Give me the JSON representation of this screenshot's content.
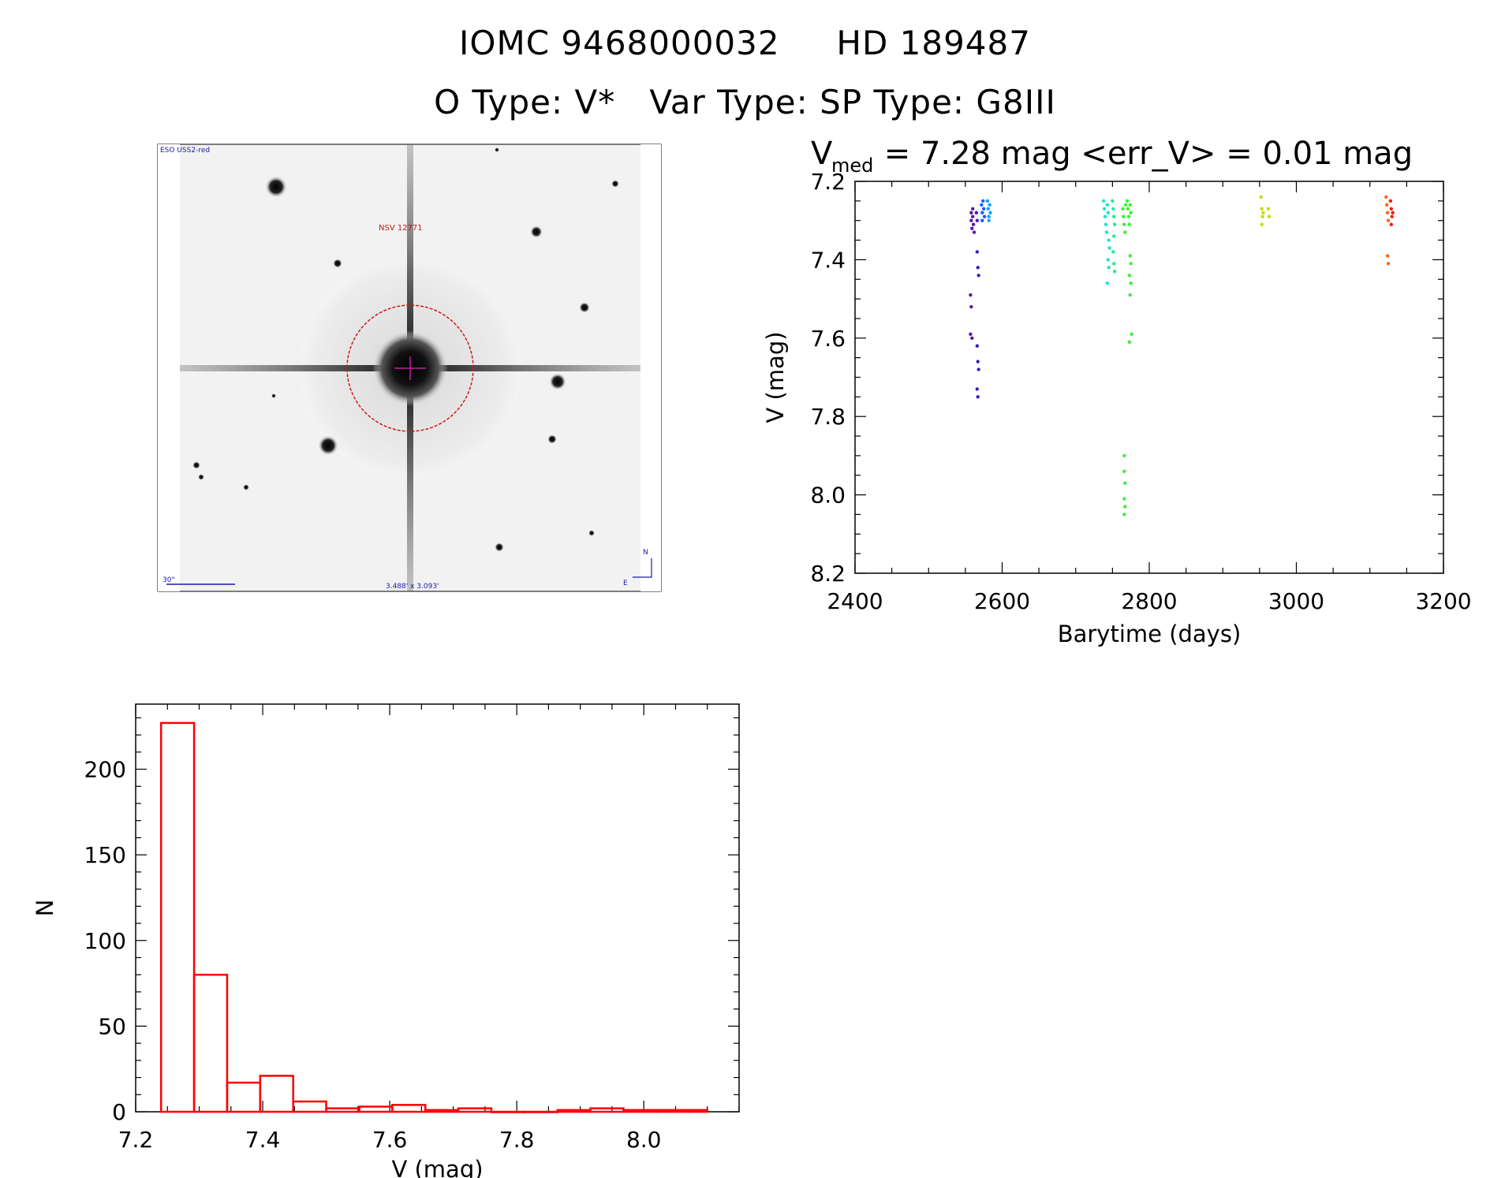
{
  "title": {
    "line1_id": "IOMC 9468000032",
    "line1_name": "HD 189487",
    "line2_otype": "O Type: V*",
    "line2_vartype": "Var Type:",
    "line2_sptype": "SP Type: G8III"
  },
  "finder": {
    "survey_label": "ESO USS2-red",
    "target_label": "NSV 12771",
    "scale_label": "30\"",
    "size_label": "3.488' x 3.093'",
    "north_label": "N",
    "east_label": "E"
  },
  "lightcurve_header": {
    "vmed_base": "V",
    "vmed_sub": "med",
    "vmed_text": " = 7.28 mag <err_V> = 0.01 mag"
  },
  "chart_data": [
    {
      "type": "scatter",
      "title": "",
      "xlabel": "Barytime (days)",
      "ylabel": "V (mag)",
      "xlim": [
        2400,
        3200
      ],
      "ylim": [
        8.2,
        7.2
      ],
      "y_inverted": true,
      "xticks": [
        2400,
        2600,
        2800,
        3000,
        3200
      ],
      "yticks": [
        "7.2",
        "7.4",
        "7.6",
        "7.8",
        "8.0",
        "8.2"
      ],
      "grid": false,
      "points": [
        {
          "x": 2558,
          "y": 7.28,
          "color": "#5a1a9e"
        },
        {
          "x": 2558,
          "y": 7.3,
          "color": "#5a1a9e"
        },
        {
          "x": 2559,
          "y": 7.32,
          "color": "#5a1a9e"
        },
        {
          "x": 2560,
          "y": 7.27,
          "color": "#5a1a9e"
        },
        {
          "x": 2560,
          "y": 7.29,
          "color": "#5a1a9e"
        },
        {
          "x": 2561,
          "y": 7.31,
          "color": "#5a1a9e"
        },
        {
          "x": 2562,
          "y": 7.33,
          "color": "#5a1a9e"
        },
        {
          "x": 2557,
          "y": 7.49,
          "color": "#5a1a9e"
        },
        {
          "x": 2558,
          "y": 7.52,
          "color": "#5a1a9e"
        },
        {
          "x": 2557,
          "y": 7.59,
          "color": "#5a1a9e"
        },
        {
          "x": 2559,
          "y": 7.6,
          "color": "#5a1a9e"
        },
        {
          "x": 2565,
          "y": 7.28,
          "color": "#3a1ac8"
        },
        {
          "x": 2566,
          "y": 7.3,
          "color": "#3a1ac8"
        },
        {
          "x": 2566,
          "y": 7.38,
          "color": "#3a1ac8"
        },
        {
          "x": 2567,
          "y": 7.42,
          "color": "#3a1ac8"
        },
        {
          "x": 2568,
          "y": 7.44,
          "color": "#3a1ac8"
        },
        {
          "x": 2566,
          "y": 7.62,
          "color": "#3a1ac8"
        },
        {
          "x": 2567,
          "y": 7.66,
          "color": "#3a1ac8"
        },
        {
          "x": 2568,
          "y": 7.68,
          "color": "#3a1ac8"
        },
        {
          "x": 2566,
          "y": 7.73,
          "color": "#3a1ac8"
        },
        {
          "x": 2567,
          "y": 7.75,
          "color": "#3a1ac8"
        },
        {
          "x": 2572,
          "y": 7.26,
          "color": "#1e5aff"
        },
        {
          "x": 2573,
          "y": 7.28,
          "color": "#1e5aff"
        },
        {
          "x": 2574,
          "y": 7.25,
          "color": "#1e5aff"
        },
        {
          "x": 2575,
          "y": 7.27,
          "color": "#1e5aff"
        },
        {
          "x": 2576,
          "y": 7.29,
          "color": "#1e5aff"
        },
        {
          "x": 2573,
          "y": 7.3,
          "color": "#1e5aff"
        },
        {
          "x": 2580,
          "y": 7.25,
          "color": "#19a0ff"
        },
        {
          "x": 2581,
          "y": 7.27,
          "color": "#19a0ff"
        },
        {
          "x": 2582,
          "y": 7.29,
          "color": "#19a0ff"
        },
        {
          "x": 2583,
          "y": 7.26,
          "color": "#19a0ff"
        },
        {
          "x": 2584,
          "y": 7.28,
          "color": "#19a0ff"
        },
        {
          "x": 2582,
          "y": 7.3,
          "color": "#19a0ff"
        },
        {
          "x": 2738,
          "y": 7.25,
          "color": "#1ee6c8"
        },
        {
          "x": 2739,
          "y": 7.27,
          "color": "#1ee6c8"
        },
        {
          "x": 2740,
          "y": 7.29,
          "color": "#1ee6c8"
        },
        {
          "x": 2741,
          "y": 7.31,
          "color": "#1ee6c8"
        },
        {
          "x": 2742,
          "y": 7.33,
          "color": "#1ee6c8"
        },
        {
          "x": 2743,
          "y": 7.26,
          "color": "#1ee6c8"
        },
        {
          "x": 2744,
          "y": 7.28,
          "color": "#1ee6c8"
        },
        {
          "x": 2745,
          "y": 7.35,
          "color": "#1ee6c8"
        },
        {
          "x": 2746,
          "y": 7.37,
          "color": "#1ee6c8"
        },
        {
          "x": 2744,
          "y": 7.4,
          "color": "#1ee6c8"
        },
        {
          "x": 2745,
          "y": 7.42,
          "color": "#1ee6c8"
        },
        {
          "x": 2743,
          "y": 7.46,
          "color": "#1ee6c8"
        },
        {
          "x": 2750,
          "y": 7.25,
          "color": "#19f08c"
        },
        {
          "x": 2751,
          "y": 7.27,
          "color": "#19f08c"
        },
        {
          "x": 2752,
          "y": 7.29,
          "color": "#19f08c"
        },
        {
          "x": 2753,
          "y": 7.31,
          "color": "#19f08c"
        },
        {
          "x": 2752,
          "y": 7.34,
          "color": "#19f08c"
        },
        {
          "x": 2751,
          "y": 7.38,
          "color": "#19f08c"
        },
        {
          "x": 2752,
          "y": 7.41,
          "color": "#19f08c"
        },
        {
          "x": 2753,
          "y": 7.43,
          "color": "#19f08c"
        },
        {
          "x": 2764,
          "y": 7.27,
          "color": "#3cf03c"
        },
        {
          "x": 2765,
          "y": 7.29,
          "color": "#3cf03c"
        },
        {
          "x": 2766,
          "y": 7.31,
          "color": "#3cf03c"
        },
        {
          "x": 2767,
          "y": 7.33,
          "color": "#3cf03c"
        },
        {
          "x": 2768,
          "y": 7.26,
          "color": "#3cf03c"
        },
        {
          "x": 2766,
          "y": 7.9,
          "color": "#3cf03c"
        },
        {
          "x": 2766,
          "y": 7.94,
          "color": "#3cf03c"
        },
        {
          "x": 2767,
          "y": 7.97,
          "color": "#3cf03c"
        },
        {
          "x": 2766,
          "y": 8.01,
          "color": "#3cf03c"
        },
        {
          "x": 2767,
          "y": 8.03,
          "color": "#3cf03c"
        },
        {
          "x": 2766,
          "y": 8.05,
          "color": "#3cf03c"
        },
        {
          "x": 2770,
          "y": 7.25,
          "color": "#3cf03c"
        },
        {
          "x": 2771,
          "y": 7.27,
          "color": "#3cf03c"
        },
        {
          "x": 2772,
          "y": 7.29,
          "color": "#3cf03c"
        },
        {
          "x": 2773,
          "y": 7.31,
          "color": "#3cf03c"
        },
        {
          "x": 2774,
          "y": 7.26,
          "color": "#3cf03c"
        },
        {
          "x": 2775,
          "y": 7.28,
          "color": "#3cf03c"
        },
        {
          "x": 2774,
          "y": 7.39,
          "color": "#3cf03c"
        },
        {
          "x": 2775,
          "y": 7.41,
          "color": "#3cf03c"
        },
        {
          "x": 2773,
          "y": 7.44,
          "color": "#3cf03c"
        },
        {
          "x": 2775,
          "y": 7.46,
          "color": "#3cf03c"
        },
        {
          "x": 2774,
          "y": 7.49,
          "color": "#3cf03c"
        },
        {
          "x": 2776,
          "y": 7.59,
          "color": "#3cf03c"
        },
        {
          "x": 2773,
          "y": 7.61,
          "color": "#3cf03c"
        },
        {
          "x": 2952,
          "y": 7.24,
          "color": "#c8dc14"
        },
        {
          "x": 2953,
          "y": 7.27,
          "color": "#c8dc14"
        },
        {
          "x": 2954,
          "y": 7.29,
          "color": "#c8dc14"
        },
        {
          "x": 2953,
          "y": 7.31,
          "color": "#c8dc14"
        },
        {
          "x": 2955,
          "y": 7.28,
          "color": "#c8dc14"
        },
        {
          "x": 2962,
          "y": 7.27,
          "color": "#c8dc14"
        },
        {
          "x": 2963,
          "y": 7.29,
          "color": "#c8dc14"
        },
        {
          "x": 3122,
          "y": 7.24,
          "color": "#ff6414"
        },
        {
          "x": 3123,
          "y": 7.26,
          "color": "#ff6414"
        },
        {
          "x": 3124,
          "y": 7.28,
          "color": "#ff6414"
        },
        {
          "x": 3125,
          "y": 7.3,
          "color": "#ff6414"
        },
        {
          "x": 3124,
          "y": 7.39,
          "color": "#ff6414"
        },
        {
          "x": 3125,
          "y": 7.41,
          "color": "#ff6414"
        },
        {
          "x": 3128,
          "y": 7.25,
          "color": "#e61e1e"
        },
        {
          "x": 3129,
          "y": 7.27,
          "color": "#e61e1e"
        },
        {
          "x": 3130,
          "y": 7.29,
          "color": "#e61e1e"
        },
        {
          "x": 3129,
          "y": 7.31,
          "color": "#e61e1e"
        },
        {
          "x": 3131,
          "y": 7.28,
          "color": "#e61e1e"
        }
      ]
    },
    {
      "type": "bar",
      "title": "",
      "xlabel": "V (mag)",
      "ylabel": "N",
      "xlim": [
        7.2,
        8.15
      ],
      "ylim": [
        0,
        238
      ],
      "xticks": [
        "7.2",
        "7.4",
        "7.6",
        "7.8",
        "8.0"
      ],
      "yticks": [
        "0",
        "50",
        "100",
        "150",
        "200"
      ],
      "bar_style": "outline",
      "bar_color": "#ff0000",
      "bins": [
        {
          "x0": 7.24,
          "x1": 7.292,
          "count": 227
        },
        {
          "x0": 7.292,
          "x1": 7.344,
          "count": 80
        },
        {
          "x0": 7.344,
          "x1": 7.396,
          "count": 17
        },
        {
          "x0": 7.396,
          "x1": 7.448,
          "count": 21
        },
        {
          "x0": 7.448,
          "x1": 7.5,
          "count": 6
        },
        {
          "x0": 7.5,
          "x1": 7.552,
          "count": 2
        },
        {
          "x0": 7.552,
          "x1": 7.604,
          "count": 3
        },
        {
          "x0": 7.604,
          "x1": 7.656,
          "count": 4
        },
        {
          "x0": 7.656,
          "x1": 7.708,
          "count": 1
        },
        {
          "x0": 7.708,
          "x1": 7.76,
          "count": 2
        },
        {
          "x0": 7.76,
          "x1": 7.812,
          "count": 0
        },
        {
          "x0": 7.812,
          "x1": 7.864,
          "count": 0
        },
        {
          "x0": 7.864,
          "x1": 7.916,
          "count": 1
        },
        {
          "x0": 7.916,
          "x1": 7.968,
          "count": 2
        },
        {
          "x0": 7.968,
          "x1": 8.02,
          "count": 1
        },
        {
          "x0": 8.02,
          "x1": 8.072,
          "count": 1
        },
        {
          "x0": 8.072,
          "x1": 8.1,
          "count": 1
        }
      ]
    }
  ]
}
